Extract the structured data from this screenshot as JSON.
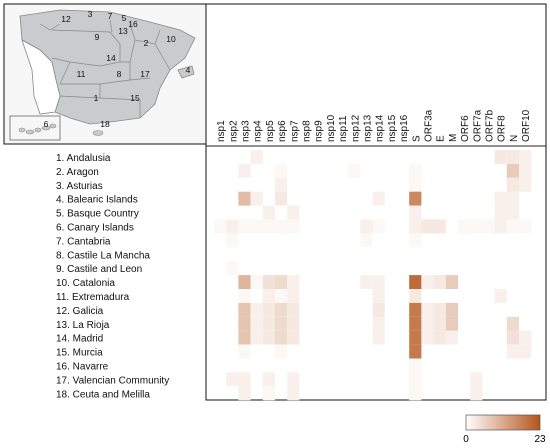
{
  "chart_data": {
    "type": "heatmap",
    "title": "",
    "xlabel": "",
    "ylabel": "",
    "columns": [
      "nsp1",
      "nsp2",
      "nsp3",
      "nsp4",
      "nsp5",
      "nsp6",
      "nsp7",
      "nsp8",
      "nsp9",
      "nsp10",
      "nsp11",
      "nsp12",
      "nsp13",
      "nsp14",
      "nsp15",
      "nsp16",
      "S",
      "ORF3a",
      "E",
      "M",
      "ORF6",
      "ORF7a",
      "ORF7b",
      "ORF8",
      "N",
      "ORF10"
    ],
    "rows": [
      "1. Andalusia",
      "2. Aragon",
      "3. Asturias",
      "4. Balearic Islands",
      "5. Basque Country",
      "6. Canary Islands",
      "7. Cantabria",
      "8. Castile La Mancha",
      "9. Castile and Leon",
      "10. Catalonia",
      "11. Extremadura",
      "12. Galicia",
      "13. La Rioja",
      "14. Madrid",
      "15. Murcia",
      "16. Navarre",
      "17. Valencian Community",
      "18. Ceuta and Melilla"
    ],
    "values": [
      [
        0,
        0,
        0,
        2,
        0,
        0,
        0,
        0,
        0,
        0,
        0,
        0,
        0,
        0,
        0,
        0,
        0,
        0,
        0,
        0,
        0,
        0,
        0,
        3,
        3,
        2
      ],
      [
        0,
        0,
        2,
        0,
        0,
        1,
        0,
        0,
        0,
        0,
        0,
        1,
        0,
        0,
        0,
        0,
        1,
        0,
        0,
        0,
        0,
        0,
        0,
        0,
        7,
        2
      ],
      [
        0,
        0,
        0,
        0,
        0,
        2,
        0,
        0,
        0,
        0,
        0,
        0,
        0,
        0,
        0,
        0,
        1,
        0,
        0,
        0,
        0,
        0,
        0,
        0,
        3,
        2
      ],
      [
        0,
        0,
        9,
        2,
        0,
        3,
        0,
        0,
        0,
        0,
        0,
        0,
        0,
        2,
        0,
        0,
        16,
        0,
        0,
        0,
        0,
        0,
        0,
        2,
        2,
        0
      ],
      [
        0,
        0,
        0,
        0,
        2,
        0,
        2,
        0,
        0,
        0,
        0,
        0,
        0,
        0,
        0,
        0,
        2,
        0,
        0,
        0,
        0,
        0,
        0,
        2,
        2,
        0
      ],
      [
        1,
        2,
        1,
        1,
        1,
        1,
        1,
        0,
        0,
        0,
        0,
        0,
        2,
        1,
        0,
        0,
        2,
        3,
        3,
        0,
        1,
        1,
        1,
        2,
        1,
        1
      ],
      [
        0,
        1,
        0,
        0,
        0,
        0,
        0,
        0,
        0,
        0,
        0,
        0,
        1,
        0,
        0,
        0,
        1,
        0,
        0,
        0,
        0,
        0,
        0,
        0,
        0,
        0
      ],
      [
        0,
        0,
        0,
        0,
        0,
        0,
        0,
        0,
        0,
        0,
        0,
        0,
        0,
        0,
        0,
        0,
        0,
        0,
        0,
        0,
        0,
        0,
        0,
        0,
        0,
        0
      ],
      [
        0,
        1,
        0,
        0,
        0,
        0,
        0,
        0,
        0,
        0,
        0,
        0,
        0,
        0,
        0,
        0,
        0,
        0,
        0,
        0,
        0,
        0,
        0,
        0,
        0,
        0
      ],
      [
        0,
        0,
        10,
        1,
        4,
        5,
        2,
        0,
        0,
        0,
        0,
        0,
        2,
        2,
        0,
        0,
        20,
        2,
        3,
        7,
        0,
        0,
        0,
        0,
        0,
        0
      ],
      [
        0,
        0,
        1,
        0,
        2,
        1,
        2,
        0,
        0,
        0,
        0,
        0,
        0,
        2,
        0,
        0,
        3,
        0,
        0,
        0,
        0,
        0,
        0,
        2,
        0,
        0
      ],
      [
        0,
        0,
        8,
        2,
        3,
        5,
        3,
        0,
        0,
        0,
        0,
        0,
        0,
        3,
        0,
        0,
        18,
        2,
        3,
        7,
        0,
        0,
        0,
        0,
        0,
        0
      ],
      [
        0,
        0,
        8,
        2,
        3,
        5,
        3,
        0,
        0,
        0,
        0,
        0,
        0,
        2,
        0,
        0,
        18,
        2,
        3,
        7,
        0,
        0,
        0,
        0,
        5,
        0
      ],
      [
        0,
        0,
        8,
        2,
        3,
        5,
        3,
        0,
        0,
        0,
        0,
        0,
        0,
        2,
        0,
        0,
        18,
        2,
        3,
        2,
        0,
        0,
        0,
        0,
        4,
        2
      ],
      [
        0,
        0,
        1,
        0,
        0,
        1,
        0,
        0,
        0,
        0,
        0,
        0,
        0,
        0,
        0,
        0,
        18,
        0,
        0,
        0,
        0,
        0,
        0,
        0,
        2,
        2
      ],
      [
        0,
        0,
        0,
        0,
        0,
        0,
        0,
        0,
        0,
        0,
        0,
        0,
        0,
        0,
        0,
        0,
        1,
        0,
        0,
        0,
        0,
        0,
        0,
        0,
        0,
        0
      ],
      [
        0,
        2,
        2,
        0,
        2,
        0,
        2,
        0,
        0,
        0,
        0,
        0,
        0,
        0,
        0,
        0,
        1,
        0,
        0,
        0,
        0,
        2,
        0,
        0,
        0,
        0
      ],
      [
        0,
        0,
        2,
        0,
        1,
        0,
        2,
        0,
        0,
        0,
        0,
        0,
        0,
        0,
        0,
        0,
        1,
        0,
        0,
        0,
        0,
        2,
        0,
        0,
        0,
        0
      ]
    ],
    "colorbar": {
      "min": 0,
      "max": 23,
      "min_label": "0",
      "max_label": "23",
      "low_color": "#ffffff",
      "high_color": "#b5541c"
    }
  },
  "map": {
    "region_numbers": [
      "1",
      "2",
      "3",
      "4",
      "5",
      "6",
      "7",
      "8",
      "9",
      "10",
      "11",
      "12",
      "13",
      "14",
      "15",
      "16",
      "17",
      "18"
    ],
    "fill_color": "#c9cbcc",
    "sea_color": "#f7f7f7"
  },
  "colors": {
    "frame": "#111111",
    "grid_line": "#222222"
  }
}
